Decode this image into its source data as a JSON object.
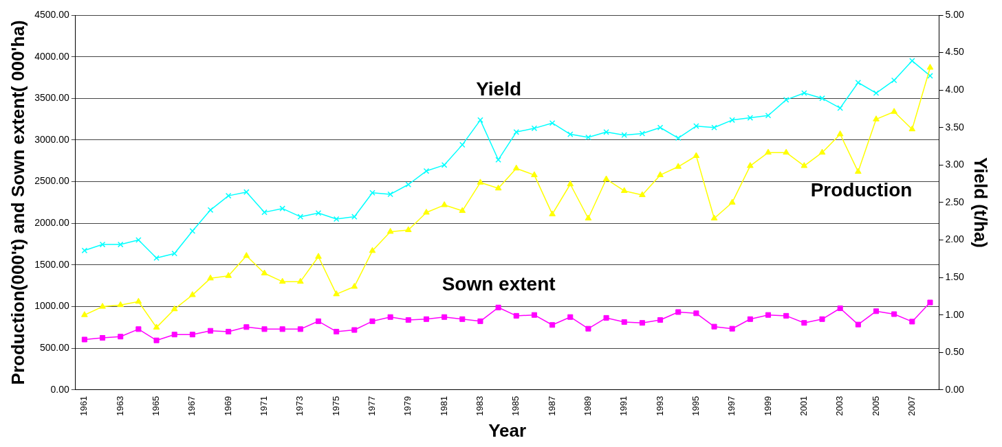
{
  "chart_data": {
    "type": "line",
    "xlabel": "Year",
    "ylabel": "Production(000't) and Sown extent( 000'ha)",
    "y2label": "Yield (t/ha)",
    "categories": [
      "1961",
      null,
      "1963",
      null,
      "1965",
      null,
      "1967",
      null,
      "1969",
      null,
      "1971",
      null,
      "1973",
      null,
      "1975",
      null,
      "1977",
      null,
      "1979",
      null,
      "1981",
      null,
      "1983",
      null,
      "1985",
      null,
      "1987",
      null,
      "1989",
      null,
      "1991",
      null,
      "1993",
      null,
      "1995",
      null,
      "1997",
      null,
      "1999",
      null,
      "2001",
      null,
      "2003",
      null,
      "2005",
      null,
      "2007",
      null
    ],
    "series": [
      {
        "name": "Sown extent",
        "color": "#ff00ff",
        "marker": "square",
        "values": [
          605,
          625,
          640,
          730,
          595,
          665,
          665,
          710,
          700,
          755,
          730,
          730,
          730,
          825,
          700,
          720,
          825,
          875,
          840,
          850,
          875,
          850,
          825,
          990,
          890,
          900,
          780,
          875,
          735,
          865,
          815,
          805,
          840,
          935,
          920,
          760,
          735,
          850,
          900,
          890,
          805,
          850,
          980,
          785,
          945,
          910,
          820,
          1050
        ]
      },
      {
        "name": "Production",
        "color": "#ffff00",
        "marker": "triangle",
        "values": [
          900,
          1000,
          1020,
          1060,
          750,
          970,
          1140,
          1340,
          1370,
          1610,
          1400,
          1300,
          1300,
          1600,
          1150,
          1240,
          1670,
          1900,
          1920,
          2130,
          2220,
          2150,
          2490,
          2420,
          2660,
          2580,
          2110,
          2470,
          2060,
          2530,
          2390,
          2340,
          2580,
          2680,
          2810,
          2060,
          2250,
          2690,
          2850,
          2850,
          2690,
          2850,
          3070,
          2620,
          3250,
          3340,
          3130,
          3870
        ]
      },
      {
        "name": "Yield",
        "color": "#00ffff",
        "marker": "cross",
        "axis": "y2",
        "values": [
          1.86,
          1.94,
          1.94,
          2.0,
          1.76,
          1.82,
          2.12,
          2.4,
          2.59,
          2.64,
          2.37,
          2.42,
          2.31,
          2.36,
          2.28,
          2.31,
          2.63,
          2.61,
          2.74,
          2.92,
          3.0,
          3.27,
          3.6,
          3.07,
          3.44,
          3.49,
          3.56,
          3.41,
          3.37,
          3.44,
          3.4,
          3.42,
          3.5,
          3.36,
          3.52,
          3.5,
          3.6,
          3.63,
          3.66,
          3.87,
          3.96,
          3.89,
          3.76,
          4.1,
          3.96,
          4.13,
          4.39,
          4.19
        ]
      }
    ],
    "ylim": [
      0,
      4500
    ],
    "yticks": [
      {
        "value": 0,
        "label": "0.00"
      },
      {
        "value": 500,
        "label": "500.00"
      },
      {
        "value": 1000,
        "label": "1000.00"
      },
      {
        "value": 1500,
        "label": "1500.00"
      },
      {
        "value": 2000,
        "label": "2000.00"
      },
      {
        "value": 2500,
        "label": "2500.00"
      },
      {
        "value": 3000,
        "label": "3000.00"
      },
      {
        "value": 3500,
        "label": "3500.00"
      },
      {
        "value": 4000,
        "label": "4000.00"
      },
      {
        "value": 4500,
        "label": "4500.00"
      }
    ],
    "y2lim": [
      0,
      5
    ],
    "y2ticks": [
      {
        "value": 0,
        "label": "0.00"
      },
      {
        "value": 0.5,
        "label": "0.50"
      },
      {
        "value": 1,
        "label": "1.00"
      },
      {
        "value": 1.5,
        "label": "1.50"
      },
      {
        "value": 2,
        "label": "2.00"
      },
      {
        "value": 2.5,
        "label": "2.50"
      },
      {
        "value": 3,
        "label": "3.00"
      },
      {
        "value": 3.5,
        "label": "3.50"
      },
      {
        "value": 4,
        "label": "4.00"
      },
      {
        "value": 4.5,
        "label": "4.50"
      },
      {
        "value": 5,
        "label": "5.00"
      }
    ],
    "grid": "y",
    "legend": false
  }
}
